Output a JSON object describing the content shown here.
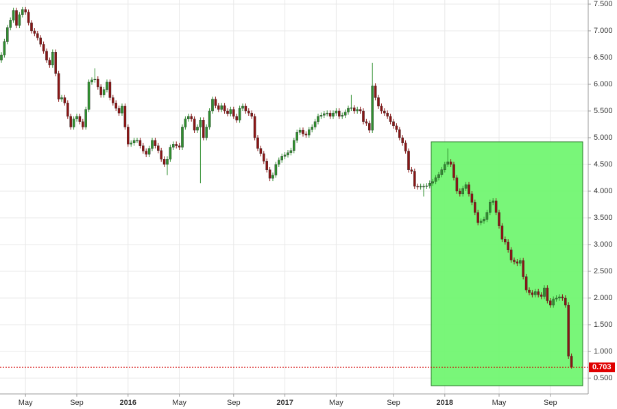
{
  "chart_data": {
    "type": "candlestick",
    "categories": [
      null,
      null,
      null,
      null,
      null,
      null,
      null,
      null,
      "May",
      null,
      null,
      null,
      null,
      null,
      null,
      null,
      null,
      null,
      null,
      null,
      null,
      null,
      null,
      null,
      null,
      "Sep",
      null,
      null,
      null,
      null,
      null,
      null,
      null,
      null,
      null,
      null,
      null,
      null,
      null,
      null,
      null,
      null,
      "2016",
      null,
      null,
      null,
      null,
      null,
      null,
      null,
      null,
      null,
      null,
      null,
      null,
      null,
      null,
      null,
      null,
      "May",
      null,
      null,
      null,
      null,
      null,
      null,
      null,
      null,
      null,
      null,
      null,
      null,
      null,
      null,
      null,
      null,
      null,
      "Sep",
      null,
      null,
      null,
      null,
      null,
      null,
      null,
      null,
      null,
      null,
      null,
      null,
      null,
      null,
      null,
      null,
      "2017",
      null,
      null,
      null,
      null,
      null,
      null,
      null,
      null,
      null,
      null,
      null,
      null,
      null,
      null,
      null,
      null,
      "May",
      null,
      null,
      null,
      null,
      null,
      null,
      null,
      null,
      null,
      null,
      null,
      null,
      null,
      null,
      null,
      null,
      null,
      null,
      "Sep",
      null,
      null,
      null,
      null,
      null,
      null,
      null,
      null,
      null,
      null,
      null,
      null,
      null,
      null,
      null,
      null,
      "2018",
      null,
      null,
      null,
      null,
      null,
      null,
      null,
      null,
      null,
      null,
      null,
      null,
      null,
      null,
      null,
      null,
      null,
      "May",
      null,
      null,
      null,
      null,
      null,
      null,
      null,
      null,
      null,
      null,
      null,
      null,
      null,
      null,
      null,
      null,
      "Sep",
      null,
      null,
      null,
      null,
      null,
      null,
      null
    ],
    "open": [
      6.45,
      6.55,
      6.8,
      7.06,
      7.2,
      7.38,
      7.1,
      7.3,
      7.4,
      7.35,
      7.15,
      7.0,
      6.95,
      6.87,
      6.75,
      6.62,
      6.45,
      6.36,
      6.6,
      6.2,
      5.72,
      5.75,
      5.65,
      5.4,
      5.2,
      5.35,
      5.4,
      5.3,
      5.2,
      5.53,
      6.04,
      6.08,
      6.1,
      5.95,
      5.8,
      5.9,
      6.04,
      5.75,
      5.65,
      5.55,
      5.46,
      5.59,
      5.2,
      4.88,
      4.9,
      4.95,
      4.95,
      4.85,
      4.75,
      4.69,
      4.8,
      4.95,
      4.85,
      4.76,
      4.6,
      4.5,
      4.6,
      4.82,
      4.88,
      4.85,
      4.82,
      5.2,
      5.35,
      5.4,
      5.35,
      5.14,
      5.2,
      5.33,
      5.0,
      5.2,
      5.5,
      5.72,
      5.6,
      5.53,
      5.6,
      5.5,
      5.45,
      5.53,
      5.4,
      5.33,
      5.55,
      5.59,
      5.5,
      5.46,
      5.4,
      5.0,
      4.8,
      4.7,
      4.56,
      4.4,
      4.24,
      4.3,
      4.5,
      4.58,
      4.65,
      4.68,
      4.72,
      4.76,
      4.95,
      5.1,
      5.14,
      5.07,
      5.05,
      5.15,
      5.2,
      5.3,
      5.4,
      5.42,
      5.45,
      5.46,
      5.4,
      5.46,
      5.5,
      5.4,
      5.42,
      5.48,
      5.55,
      5.56,
      5.5,
      5.53,
      5.5,
      5.3,
      5.27,
      5.14,
      5.97,
      5.75,
      5.59,
      5.5,
      5.46,
      5.4,
      5.3,
      5.22,
      5.15,
      5.0,
      4.9,
      4.75,
      4.4,
      4.37,
      4.09,
      4.08,
      4.09,
      4.09,
      4.1,
      4.15,
      4.18,
      4.25,
      4.31,
      4.4,
      4.5,
      4.55,
      4.5,
      4.25,
      4.0,
      3.95,
      4.05,
      4.12,
      3.95,
      3.79,
      3.6,
      3.41,
      3.44,
      3.47,
      3.6,
      3.79,
      3.82,
      3.6,
      3.35,
      3.1,
      3.05,
      2.9,
      2.71,
      2.68,
      2.65,
      2.7,
      2.4,
      2.15,
      2.1,
      2.06,
      2.12,
      2.06,
      2.03,
      2.19,
      1.95,
      1.87,
      1.98,
      2.0,
      2.02,
      2.0,
      1.87,
      0.91
    ],
    "high": [
      6.6,
      6.85,
      7.11,
      7.25,
      7.43,
      7.43,
      7.35,
      7.45,
      7.45,
      7.4,
      7.2,
      7.05,
      7.0,
      6.92,
      6.8,
      6.67,
      6.5,
      6.65,
      6.65,
      6.25,
      5.8,
      5.8,
      5.7,
      5.45,
      5.4,
      5.45,
      5.45,
      5.35,
      5.58,
      6.09,
      6.13,
      6.3,
      6.15,
      6.0,
      5.95,
      6.09,
      6.09,
      5.8,
      5.7,
      5.6,
      5.64,
      5.64,
      5.25,
      4.95,
      5.0,
      5.0,
      5.0,
      4.9,
      4.8,
      4.85,
      5.0,
      5.0,
      4.9,
      4.81,
      4.65,
      4.65,
      4.87,
      4.93,
      4.93,
      4.9,
      5.25,
      5.4,
      5.45,
      5.45,
      5.4,
      5.25,
      5.38,
      5.38,
      5.25,
      5.55,
      5.77,
      5.77,
      5.65,
      5.65,
      5.65,
      5.55,
      5.58,
      5.58,
      5.45,
      5.6,
      5.64,
      5.64,
      5.55,
      5.51,
      5.45,
      5.05,
      4.85,
      4.75,
      4.61,
      4.45,
      4.35,
      4.55,
      4.63,
      4.7,
      4.73,
      4.77,
      4.81,
      5.0,
      5.15,
      5.19,
      5.19,
      5.12,
      5.2,
      5.25,
      5.35,
      5.45,
      5.47,
      5.5,
      5.51,
      5.51,
      5.51,
      5.55,
      5.55,
      5.47,
      5.53,
      5.6,
      5.8,
      5.61,
      5.58,
      5.58,
      5.55,
      5.35,
      5.32,
      6.4,
      6.02,
      5.8,
      5.64,
      5.55,
      5.51,
      5.45,
      5.35,
      5.27,
      5.2,
      5.05,
      4.95,
      4.8,
      4.45,
      4.42,
      4.14,
      4.14,
      4.14,
      4.15,
      4.2,
      4.23,
      4.3,
      4.36,
      4.45,
      4.55,
      4.8,
      4.6,
      4.55,
      4.3,
      4.05,
      4.1,
      4.17,
      4.17,
      4.0,
      3.84,
      3.65,
      3.49,
      3.52,
      3.65,
      3.84,
      3.87,
      3.87,
      3.65,
      3.4,
      3.15,
      3.1,
      2.95,
      2.76,
      2.73,
      2.75,
      2.75,
      2.45,
      2.2,
      2.15,
      2.17,
      2.17,
      2.11,
      2.24,
      2.24,
      2.0,
      2.03,
      2.05,
      2.07,
      2.07,
      2.05,
      1.92,
      0.96
    ],
    "low": [
      6.4,
      6.5,
      6.75,
      7.01,
      7.15,
      7.05,
      7.05,
      7.25,
      7.3,
      7.1,
      6.95,
      6.9,
      6.82,
      6.7,
      6.57,
      6.4,
      6.31,
      6.31,
      6.15,
      5.67,
      5.67,
      5.6,
      5.35,
      5.15,
      5.15,
      5.3,
      5.25,
      5.15,
      5.15,
      5.48,
      5.99,
      6.03,
      5.9,
      5.75,
      5.75,
      5.85,
      5.7,
      5.6,
      5.5,
      5.41,
      5.41,
      5.15,
      4.83,
      4.83,
      4.85,
      4.9,
      4.8,
      4.7,
      4.64,
      4.64,
      4.75,
      4.8,
      4.71,
      4.55,
      4.45,
      4.3,
      4.55,
      4.77,
      4.8,
      4.77,
      4.77,
      5.15,
      5.3,
      5.3,
      5.09,
      5.09,
      4.15,
      4.95,
      4.95,
      5.15,
      5.45,
      5.55,
      5.48,
      5.48,
      5.45,
      5.4,
      5.4,
      5.35,
      5.28,
      5.28,
      5.5,
      5.45,
      5.41,
      5.35,
      4.95,
      4.75,
      4.65,
      4.51,
      4.35,
      4.19,
      4.19,
      4.25,
      4.45,
      4.53,
      4.6,
      4.63,
      4.67,
      4.71,
      4.9,
      5.05,
      5.02,
      5.0,
      5.0,
      5.1,
      5.15,
      5.25,
      5.35,
      5.37,
      5.4,
      5.35,
      5.35,
      5.41,
      5.35,
      5.35,
      5.37,
      5.43,
      5.5,
      5.45,
      5.45,
      5.45,
      5.25,
      5.22,
      5.09,
      5.09,
      5.7,
      5.54,
      5.45,
      5.41,
      5.35,
      5.25,
      5.17,
      5.1,
      4.95,
      4.85,
      4.7,
      4.35,
      4.32,
      4.04,
      4.03,
      4.03,
      3.9,
      4.04,
      4.05,
      4.1,
      4.13,
      4.2,
      4.26,
      4.35,
      4.45,
      4.45,
      4.2,
      3.95,
      3.9,
      3.9,
      4.0,
      3.9,
      3.74,
      3.55,
      3.36,
      3.36,
      3.39,
      3.42,
      3.55,
      3.74,
      3.55,
      3.3,
      3.05,
      3.0,
      2.85,
      2.66,
      2.63,
      2.6,
      2.6,
      2.35,
      2.1,
      2.05,
      2.01,
      2.01,
      2.01,
      1.98,
      1.98,
      1.9,
      1.82,
      1.82,
      1.93,
      1.95,
      1.95,
      1.82,
      0.86,
      0.68
    ],
    "close": [
      6.55,
      6.8,
      7.06,
      7.2,
      7.38,
      7.1,
      7.3,
      7.4,
      7.35,
      7.15,
      7.0,
      6.95,
      6.87,
      6.75,
      6.62,
      6.45,
      6.36,
      6.6,
      6.2,
      5.72,
      5.75,
      5.65,
      5.4,
      5.2,
      5.35,
      5.4,
      5.3,
      5.2,
      5.53,
      6.04,
      6.08,
      6.1,
      5.95,
      5.8,
      5.9,
      6.04,
      5.75,
      5.65,
      5.55,
      5.46,
      5.59,
      5.2,
      4.88,
      4.9,
      4.95,
      4.95,
      4.85,
      4.75,
      4.69,
      4.8,
      4.95,
      4.85,
      4.76,
      4.6,
      4.5,
      4.6,
      4.82,
      4.88,
      4.85,
      4.82,
      5.2,
      5.35,
      5.4,
      5.35,
      5.14,
      5.2,
      5.33,
      5.0,
      5.2,
      5.5,
      5.72,
      5.6,
      5.53,
      5.6,
      5.5,
      5.45,
      5.53,
      5.4,
      5.33,
      5.55,
      5.59,
      5.5,
      5.46,
      5.4,
      5.0,
      4.8,
      4.7,
      4.56,
      4.4,
      4.24,
      4.3,
      4.5,
      4.58,
      4.65,
      4.68,
      4.72,
      4.76,
      4.95,
      5.1,
      5.14,
      5.07,
      5.05,
      5.15,
      5.2,
      5.3,
      5.4,
      5.42,
      5.45,
      5.46,
      5.4,
      5.46,
      5.5,
      5.4,
      5.42,
      5.48,
      5.55,
      5.56,
      5.5,
      5.53,
      5.5,
      5.3,
      5.27,
      5.14,
      5.97,
      5.75,
      5.59,
      5.5,
      5.46,
      5.4,
      5.3,
      5.22,
      5.15,
      5.0,
      4.9,
      4.75,
      4.4,
      4.37,
      4.09,
      4.08,
      4.09,
      4.09,
      4.1,
      4.15,
      4.18,
      4.25,
      4.31,
      4.4,
      4.5,
      4.55,
      4.5,
      4.25,
      4.0,
      3.95,
      4.05,
      4.12,
      3.95,
      3.79,
      3.6,
      3.41,
      3.44,
      3.47,
      3.6,
      3.79,
      3.82,
      3.6,
      3.35,
      3.1,
      3.05,
      2.9,
      2.71,
      2.68,
      2.65,
      2.7,
      2.4,
      2.15,
      2.1,
      2.06,
      2.12,
      2.06,
      2.03,
      2.19,
      1.95,
      1.87,
      1.98,
      2.0,
      2.02,
      2.0,
      1.87,
      0.91,
      0.703
    ],
    "up_color": "#2f8f2f",
    "down_color": "#8b1515",
    "ylim": [
      0.2,
      7.6
    ],
    "yticks": [
      {
        "value": 0.5,
        "label": "0.500"
      },
      {
        "value": 1.0,
        "label": "1.000"
      },
      {
        "value": 1.5,
        "label": "1.500"
      },
      {
        "value": 2.0,
        "label": "2.000"
      },
      {
        "value": 2.5,
        "label": "2.500"
      },
      {
        "value": 3.0,
        "label": "3.000"
      },
      {
        "value": 3.5,
        "label": "3.500"
      },
      {
        "value": 4.0,
        "label": "4.000"
      },
      {
        "value": 4.5,
        "label": "4.500"
      },
      {
        "value": 5.0,
        "label": "5.000"
      },
      {
        "value": 5.5,
        "label": "5.500"
      },
      {
        "value": 6.0,
        "label": "6.000"
      },
      {
        "value": 6.5,
        "label": "6.500"
      },
      {
        "value": 7.0,
        "label": "7.000"
      },
      {
        "value": 7.5,
        "label": "7.500"
      }
    ],
    "grid": true
  }
}
